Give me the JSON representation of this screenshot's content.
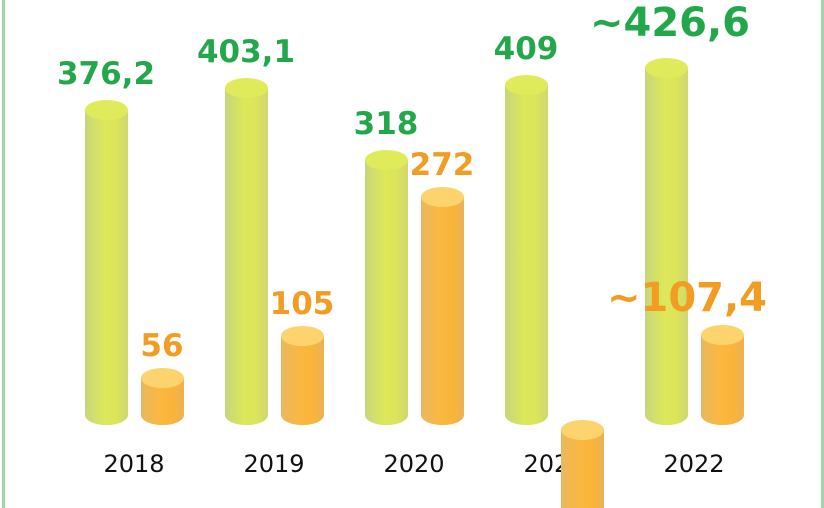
{
  "chart_data": {
    "type": "bar",
    "categories": [
      "2018",
      "2019",
      "2020",
      "2021",
      "2022"
    ],
    "series": [
      {
        "values": [
          376.2,
          403.1,
          318,
          409,
          426.6
        ],
        "labels": [
          "376,2",
          "403,1",
          "318",
          "409",
          "~426,6"
        ],
        "color": "#dce85a",
        "label_color": "#22a84a"
      },
      {
        "values": [
          56,
          105,
          272,
          null,
          107.4
        ],
        "labels": [
          "56",
          "105",
          "272",
          "",
          "~107,4"
        ],
        "color": "#fbb83e",
        "label_color": "#f39c22"
      }
    ],
    "title": "",
    "xlabel": "",
    "ylabel": "",
    "grid": false,
    "border_color": "#9fd8a6"
  }
}
